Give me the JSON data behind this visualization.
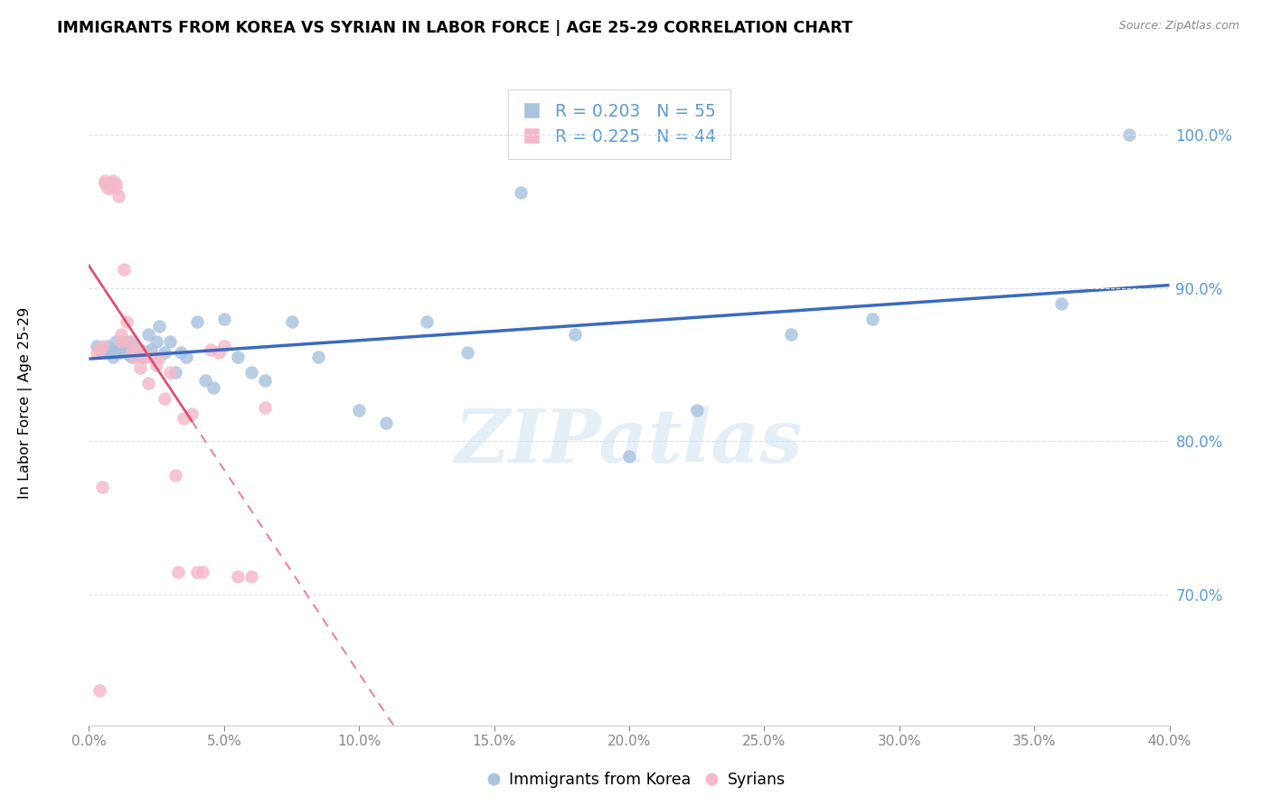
{
  "title": "IMMIGRANTS FROM KOREA VS SYRIAN IN LABOR FORCE | AGE 25-29 CORRELATION CHART",
  "source": "Source: ZipAtlas.com",
  "ylabel": "In Labor Force | Age 25-29",
  "watermark": "ZIPatlas",
  "legend_korea": "Immigrants from Korea",
  "legend_syrian": "Syrians",
  "R_korea": 0.203,
  "N_korea": 55,
  "R_syrian": 0.225,
  "N_syrian": 44,
  "x_min": 0.0,
  "x_max": 0.4,
  "y_min": 0.615,
  "y_max": 1.035,
  "korea_color": "#a8c4e0",
  "syrian_color": "#f4b8c8",
  "korea_line_color": "#3a6abf",
  "syrian_line_color": "#e05070",
  "right_axis_color": "#5b9bd5",
  "grid_color": "#dde0e8",
  "korea_x": [
    0.003,
    0.005,
    0.006,
    0.007,
    0.008,
    0.009,
    0.009,
    0.01,
    0.01,
    0.011,
    0.012,
    0.012,
    0.013,
    0.013,
    0.014,
    0.015,
    0.015,
    0.016,
    0.016,
    0.017,
    0.018,
    0.018,
    0.019,
    0.02,
    0.021,
    0.022,
    0.023,
    0.025,
    0.026,
    0.028,
    0.03,
    0.032,
    0.034,
    0.036,
    0.04,
    0.043,
    0.046,
    0.05,
    0.055,
    0.06,
    0.065,
    0.075,
    0.085,
    0.1,
    0.11,
    0.125,
    0.14,
    0.16,
    0.18,
    0.2,
    0.225,
    0.26,
    0.29,
    0.36,
    0.385
  ],
  "korea_y": [
    0.862,
    0.86,
    0.858,
    0.862,
    0.858,
    0.86,
    0.855,
    0.865,
    0.858,
    0.86,
    0.86,
    0.858,
    0.86,
    0.865,
    0.858,
    0.862,
    0.856,
    0.865,
    0.855,
    0.86,
    0.86,
    0.856,
    0.86,
    0.855,
    0.858,
    0.87,
    0.86,
    0.865,
    0.875,
    0.858,
    0.865,
    0.845,
    0.858,
    0.855,
    0.878,
    0.84,
    0.835,
    0.88,
    0.855,
    0.845,
    0.84,
    0.878,
    0.855,
    0.82,
    0.812,
    0.878,
    0.858,
    0.962,
    0.87,
    0.79,
    0.82,
    0.87,
    0.88,
    0.89,
    1.0
  ],
  "syrian_x": [
    0.003,
    0.004,
    0.005,
    0.006,
    0.006,
    0.007,
    0.008,
    0.008,
    0.009,
    0.009,
    0.01,
    0.01,
    0.011,
    0.012,
    0.012,
    0.013,
    0.014,
    0.015,
    0.016,
    0.017,
    0.018,
    0.019,
    0.02,
    0.021,
    0.022,
    0.023,
    0.025,
    0.026,
    0.028,
    0.03,
    0.032,
    0.033,
    0.035,
    0.038,
    0.04,
    0.042,
    0.045,
    0.048,
    0.05,
    0.055,
    0.06,
    0.065,
    0.005,
    0.004
  ],
  "syrian_y": [
    0.858,
    0.86,
    0.862,
    0.968,
    0.97,
    0.965,
    0.968,
    0.965,
    0.97,
    0.968,
    0.968,
    0.965,
    0.96,
    0.87,
    0.865,
    0.912,
    0.878,
    0.865,
    0.858,
    0.855,
    0.86,
    0.848,
    0.858,
    0.855,
    0.838,
    0.855,
    0.85,
    0.855,
    0.828,
    0.845,
    0.778,
    0.715,
    0.815,
    0.818,
    0.715,
    0.715,
    0.86,
    0.858,
    0.862,
    0.712,
    0.712,
    0.822,
    0.77,
    0.638
  ]
}
